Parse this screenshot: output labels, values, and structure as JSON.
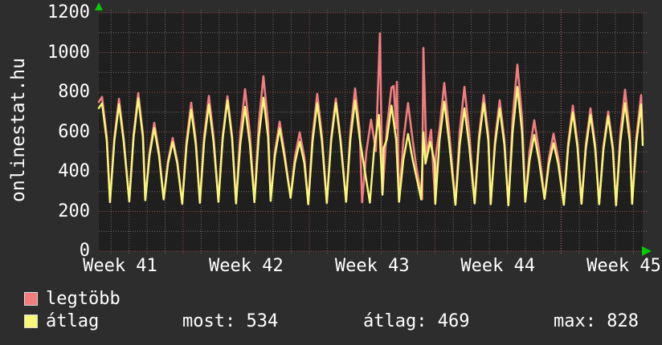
{
  "app": {
    "vertical_title": "onlinestat.hu"
  },
  "colors": {
    "background": "#2d2d2d",
    "plot_background": "#1f1f1f",
    "grid_major": "#a34a4a",
    "grid_minor": "#6e6e6e",
    "series_most": "#f17d7d",
    "series_avg": "#f8f878",
    "text": "#ffffff",
    "axis_arrow": "#00cc00"
  },
  "legend": {
    "items": [
      {
        "label": "legtöbb",
        "color": "#f17d7d"
      },
      {
        "label": "átlag",
        "color": "#f8f878"
      }
    ]
  },
  "stats": {
    "most": {
      "label": "most",
      "value": 534,
      "text": "most: 534"
    },
    "atlag": {
      "label": "átlag",
      "value": 469,
      "text": "átlag: 469"
    },
    "max": {
      "label": "max",
      "value": 828,
      "text": "max: 828"
    }
  },
  "chart_data": {
    "type": "line",
    "title": "onlinestat.hu",
    "grid": true,
    "legend_position": "bottom-left",
    "y_axis": {
      "min": 0,
      "max": 1200,
      "major_step": 200,
      "minor_step": 100,
      "tick_labels": [
        "0",
        "200",
        "400",
        "600",
        "800",
        "1000",
        "1200"
      ],
      "tick_values": [
        0,
        200,
        400,
        600,
        800,
        1000,
        1200
      ]
    },
    "x_axis": {
      "tick_labels": [
        "Week 41",
        "Week 42",
        "Week 43",
        "Week 44",
        "Week 45"
      ],
      "label_centers_t": [
        1.18,
        8.18,
        15.18,
        22.16,
        29.15
      ],
      "week_boundaries_t": [
        4.68,
        11.69,
        18.67,
        25.65
      ],
      "first_day_line_t": 0.68,
      "day_step_t": 1,
      "total_t": 30.2
    },
    "summary": {
      "most": 534,
      "atlag": 469,
      "max": 828
    },
    "series": [
      {
        "name": "legtöbb",
        "color": "#f17d7d",
        "stroke_width": 2.6,
        "days": [
          [
            0.18,
            777,
            250
          ],
          [
            1.12,
            767,
            248
          ],
          [
            2.19,
            796,
            252
          ],
          [
            3.08,
            646,
            258
          ],
          [
            4.1,
            570,
            262
          ],
          [
            5.13,
            747,
            240
          ],
          [
            6.11,
            782,
            245
          ],
          [
            7.14,
            780,
            250
          ],
          [
            8.12,
            816,
            242
          ],
          [
            9.14,
            881,
            248
          ],
          [
            10.04,
            652,
            255
          ],
          [
            11.15,
            598,
            270
          ],
          [
            12.13,
            792,
            238
          ],
          [
            13.16,
            768,
            244
          ],
          [
            14.23,
            819,
            250
          ],
          [
            15.12,
            662,
            246
          ],
          [
            16.25,
            824,
            286
          ],
          [
            17.17,
            746,
            250
          ],
          [
            18.45,
            611,
            262
          ],
          [
            19.18,
            847,
            240
          ],
          [
            20.3,
            827,
            235
          ],
          [
            21.37,
            786,
            242
          ],
          [
            22.26,
            760,
            238
          ],
          [
            23.24,
            939,
            232
          ],
          [
            24.18,
            659,
            250
          ],
          [
            25.25,
            591,
            265
          ],
          [
            26.32,
            733,
            235
          ],
          [
            27.3,
            719,
            240
          ],
          [
            28.28,
            703,
            238
          ],
          [
            29.22,
            813,
            232
          ],
          [
            30.11,
            786,
            240
          ]
        ],
        "extras": [
          [
            15.61,
            1096
          ],
          [
            16.37,
            832
          ],
          [
            16.55,
            853
          ],
          [
            17.62,
            430
          ],
          [
            18.02,
            1023
          ]
        ],
        "end_point": [
          30.2,
          560
        ]
      },
      {
        "name": "átlag",
        "color": "#f8f878",
        "stroke_width": 2.4,
        "days": [
          [
            0.18,
            745,
            248
          ],
          [
            1.12,
            740,
            246
          ],
          [
            2.19,
            770,
            250
          ],
          [
            3.08,
            620,
            256
          ],
          [
            4.1,
            550,
            260
          ],
          [
            5.13,
            712,
            238
          ],
          [
            6.11,
            739,
            243
          ],
          [
            7.14,
            759,
            248
          ],
          [
            8.12,
            727,
            240
          ],
          [
            9.14,
            773,
            246
          ],
          [
            10.04,
            618,
            253
          ],
          [
            11.15,
            551,
            268
          ],
          [
            12.13,
            746,
            236
          ],
          [
            13.16,
            746,
            242
          ],
          [
            14.23,
            759,
            248
          ],
          [
            15.55,
            686,
            244
          ],
          [
            16.25,
            733,
            284
          ],
          [
            17.17,
            590,
            248
          ],
          [
            18.4,
            551,
            260
          ],
          [
            19.18,
            753,
            238
          ],
          [
            20.3,
            719,
            233
          ],
          [
            21.37,
            746,
            240
          ],
          [
            22.26,
            719,
            236
          ],
          [
            23.24,
            827,
            230
          ],
          [
            24.18,
            585,
            248
          ],
          [
            25.25,
            544,
            263
          ],
          [
            26.32,
            699,
            233
          ],
          [
            27.3,
            686,
            238
          ],
          [
            28.28,
            679,
            236
          ],
          [
            29.22,
            746,
            230
          ],
          [
            30.11,
            739,
            238
          ]
        ],
        "extras": [
          [
            18.02,
            598
          ]
        ],
        "end_point": [
          30.2,
          534
        ]
      }
    ]
  }
}
